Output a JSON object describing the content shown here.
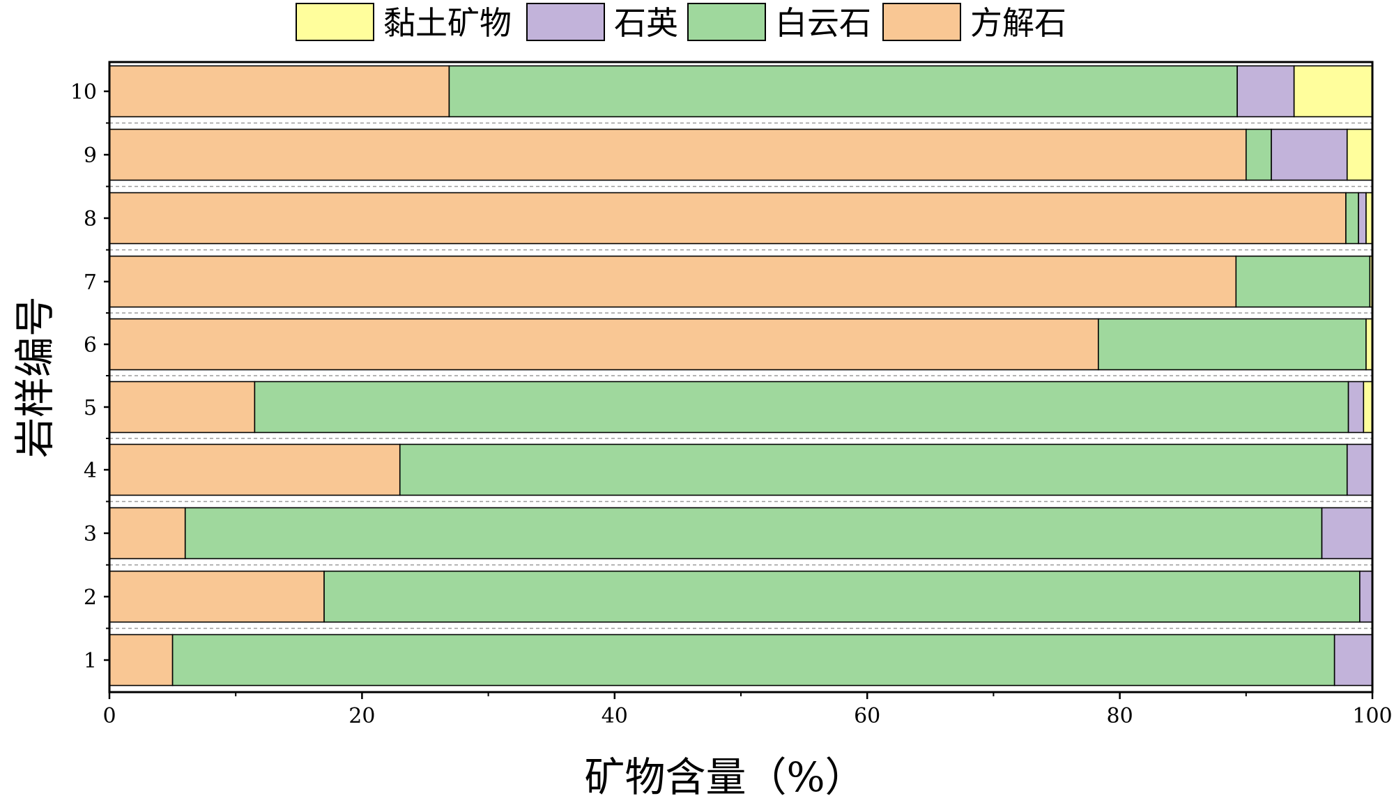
{
  "chart_data": {
    "type": "bar",
    "orientation": "horizontal",
    "stacked": true,
    "xlabel": "矿物含量（%）",
    "ylabel": "岩样编号",
    "xlim": [
      0,
      100
    ],
    "xticks": [
      "0",
      "20",
      "40",
      "60",
      "80",
      "100"
    ],
    "categories": [
      "1",
      "2",
      "3",
      "4",
      "5",
      "6",
      "7",
      "8",
      "9",
      "10"
    ],
    "series": [
      {
        "name": "方解石",
        "color": "#F9C794",
        "values": [
          5,
          17,
          6,
          23,
          11.5,
          78.3,
          89.2,
          97.9,
          90.0,
          26.9
        ]
      },
      {
        "name": "白云石",
        "color": "#9FD89D",
        "values": [
          92,
          82,
          90,
          75,
          86.6,
          21.2,
          10.6,
          1.0,
          2.0,
          62.4
        ]
      },
      {
        "name": "石英",
        "color": "#C2B3DA",
        "values": [
          3,
          1,
          4,
          2,
          1.2,
          0,
          0,
          0.6,
          6.0,
          4.5
        ]
      },
      {
        "name": "黏土矿物",
        "color": "#FFFE9C",
        "values": [
          0,
          0,
          0,
          0,
          0.7,
          0.5,
          0.2,
          0.5,
          2.0,
          6.2
        ]
      }
    ],
    "legend_order": [
      "黏土矿物",
      "石英",
      "白云石",
      "方解石"
    ],
    "legend_position": "top-center",
    "grid": false
  }
}
